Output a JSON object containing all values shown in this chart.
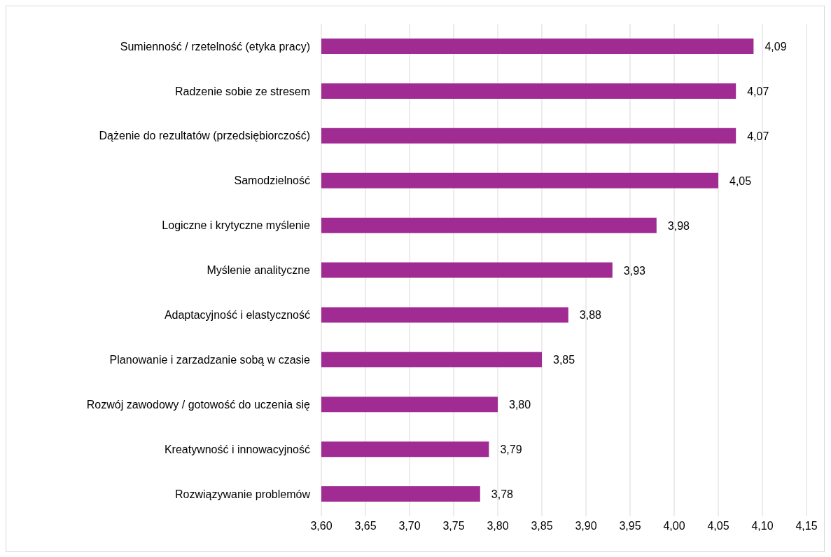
{
  "chart_data": {
    "type": "bar",
    "orientation": "horizontal",
    "categories": [
      "Sumienność / rzetelność (etyka pracy)",
      "Radzenie sobie ze stresem",
      "Dążenie do rezultatów (przedsiębiorczość)",
      "Samodzielność",
      "Logiczne i krytyczne myślenie",
      "Myślenie analityczne",
      "Adaptacyjność i elastyczność",
      "Planowanie i zarzadzanie sobą w czasie",
      "Rozwój zawodowy / gotowość do uczenia się",
      "Kreatywność i innowacyjność",
      "Rozwiązywanie problemów"
    ],
    "values": [
      4.09,
      4.07,
      4.07,
      4.05,
      3.98,
      3.93,
      3.88,
      3.85,
      3.8,
      3.79,
      3.78
    ],
    "value_labels": [
      "4,09",
      "4,07",
      "4,07",
      "4,05",
      "3,98",
      "3,93",
      "3,88",
      "3,85",
      "3,80",
      "3,79",
      "3,78"
    ],
    "color": "#a02b93",
    "xlim": [
      3.6,
      4.15
    ],
    "xticks": [
      {
        "value": 3.6,
        "label": "3,60"
      },
      {
        "value": 3.65,
        "label": "3,65"
      },
      {
        "value": 3.7,
        "label": "3,70"
      },
      {
        "value": 3.75,
        "label": "3,75"
      },
      {
        "value": 3.8,
        "label": "3,80"
      },
      {
        "value": 3.85,
        "label": "3,85"
      },
      {
        "value": 3.9,
        "label": "3,90"
      },
      {
        "value": 3.95,
        "label": "3,95"
      },
      {
        "value": 4.0,
        "label": "4,00"
      },
      {
        "value": 4.05,
        "label": "4,05"
      },
      {
        "value": 4.1,
        "label": "4,10"
      },
      {
        "value": 4.15,
        "label": "4,15"
      }
    ],
    "grid": "x",
    "legend": false
  }
}
